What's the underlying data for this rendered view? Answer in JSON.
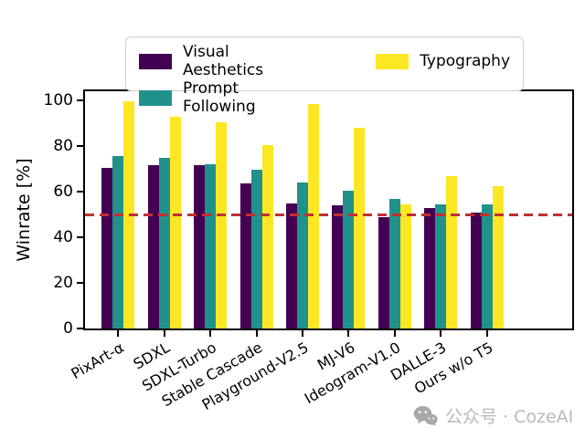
{
  "y_axis": {
    "title": "Winrate [%]"
  },
  "watermark": {
    "text": "公众号 · CozeAI",
    "color": "#b9b9b9",
    "icon": "wechat-icon"
  },
  "colors": {
    "visual_aesthetics": "#440154",
    "prompt_following": "#21918c",
    "typography": "#fde725",
    "reference_line": "#c03030",
    "axis": "#000000"
  },
  "chart_data": {
    "type": "bar",
    "title": "",
    "xlabel": "",
    "ylabel": "Winrate [%]",
    "ylim": [
      0,
      104
    ],
    "yticks": [
      0,
      20,
      40,
      60,
      80,
      100
    ],
    "grid": false,
    "legend_position": "top",
    "reference_line": {
      "y": 50,
      "style": "dashed",
      "color": "#c03030"
    },
    "categories": [
      "PixArt-α",
      "SDXL",
      "SDXL-Turbo",
      "Stable Cascade",
      "Playground-V2.5",
      "MJ-V6",
      "Ideogram-V1.0",
      "DALLE-3",
      "Ours w/o T5"
    ],
    "series": [
      {
        "name": "Visual Aesthetics",
        "color": "#440154",
        "values": [
          70.5,
          71.5,
          71.5,
          63.5,
          55,
          54,
          49,
          53,
          51
        ]
      },
      {
        "name": "Prompt Following",
        "color": "#21918c",
        "values": [
          75.5,
          75,
          72,
          69.5,
          64,
          60.5,
          57,
          54.5,
          54.5
        ]
      },
      {
        "name": "Typography",
        "color": "#fde725",
        "values": [
          99.5,
          93,
          90.5,
          80.5,
          98.5,
          88,
          54.5,
          67,
          62.5
        ]
      }
    ]
  }
}
